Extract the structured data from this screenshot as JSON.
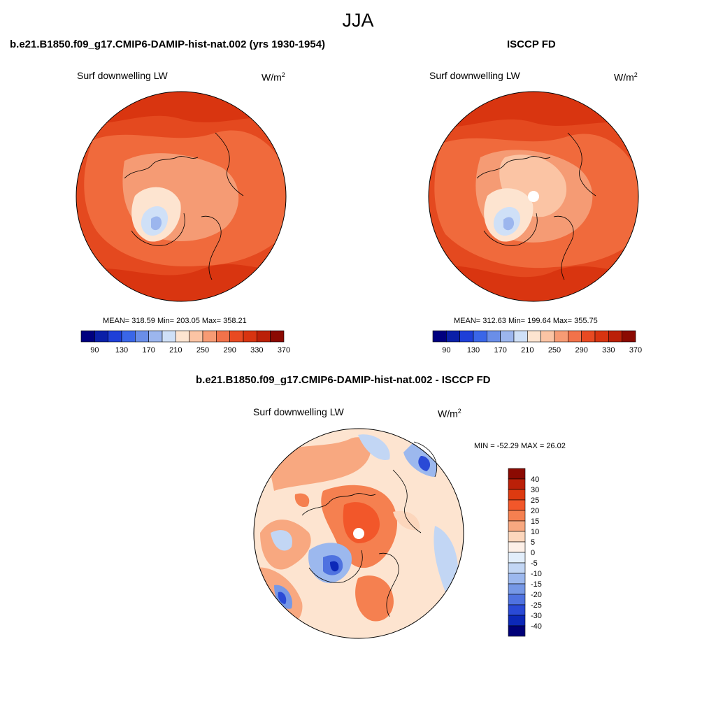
{
  "suptitle": "JJA",
  "panels": [
    {
      "title": "b.e21.B1850.f09_g17.CMIP6-DAMIP-hist-nat.002 (yrs 1930-1954)",
      "variable": "Surf downwelling LW",
      "units_base": "W/m",
      "units_exp": "2",
      "stats": "MEAN= 318.59  Min= 203.05  Max= 358.21",
      "mean": 318.59,
      "min": 203.05,
      "max": 358.21
    },
    {
      "title": "ISCCP FD",
      "variable": "Surf downwelling LW",
      "units_base": "W/m",
      "units_exp": "2",
      "stats": "MEAN= 312.63  Min= 199.64  Max= 355.75",
      "mean": 312.63,
      "min": 199.64,
      "max": 355.75
    },
    {
      "title": "b.e21.B1850.f09_g17.CMIP6-DAMIP-hist-nat.002 - ISCCP FD",
      "variable": "Surf downwelling LW",
      "units_base": "W/m",
      "units_exp": "2",
      "stats": "MIN = -52.29 MAX =  26.02",
      "min": -52.29,
      "max": 26.02
    }
  ],
  "abs_colorbar": {
    "colors": [
      "#00007f",
      "#0a1fa8",
      "#1e3fd8",
      "#3a66e8",
      "#6a8ee8",
      "#9cb6ee",
      "#cfe0f7",
      "#fde4d0",
      "#fbc4a4",
      "#f79b74",
      "#f2724a",
      "#e84a22",
      "#d83410",
      "#bb2008",
      "#8b0a02"
    ],
    "labels": [
      "90",
      "130",
      "170",
      "210",
      "250",
      "290",
      "330",
      "370"
    ]
  },
  "diff_colorbar": {
    "colors": [
      "#8b0a02",
      "#bb2008",
      "#dd3a10",
      "#f2572a",
      "#f58050",
      "#f8a880",
      "#fcd6bc",
      "#fdf0e8",
      "#e2eefb",
      "#c2d6f4",
      "#9cb8ee",
      "#7698e6",
      "#4f72e0",
      "#2a4ad6",
      "#0c28b8",
      "#000078"
    ],
    "labels": [
      "40",
      "30",
      "25",
      "20",
      "15",
      "10",
      "5",
      "0",
      "-5",
      "-10",
      "-15",
      "-20",
      "-25",
      "-30",
      "-40"
    ]
  }
}
